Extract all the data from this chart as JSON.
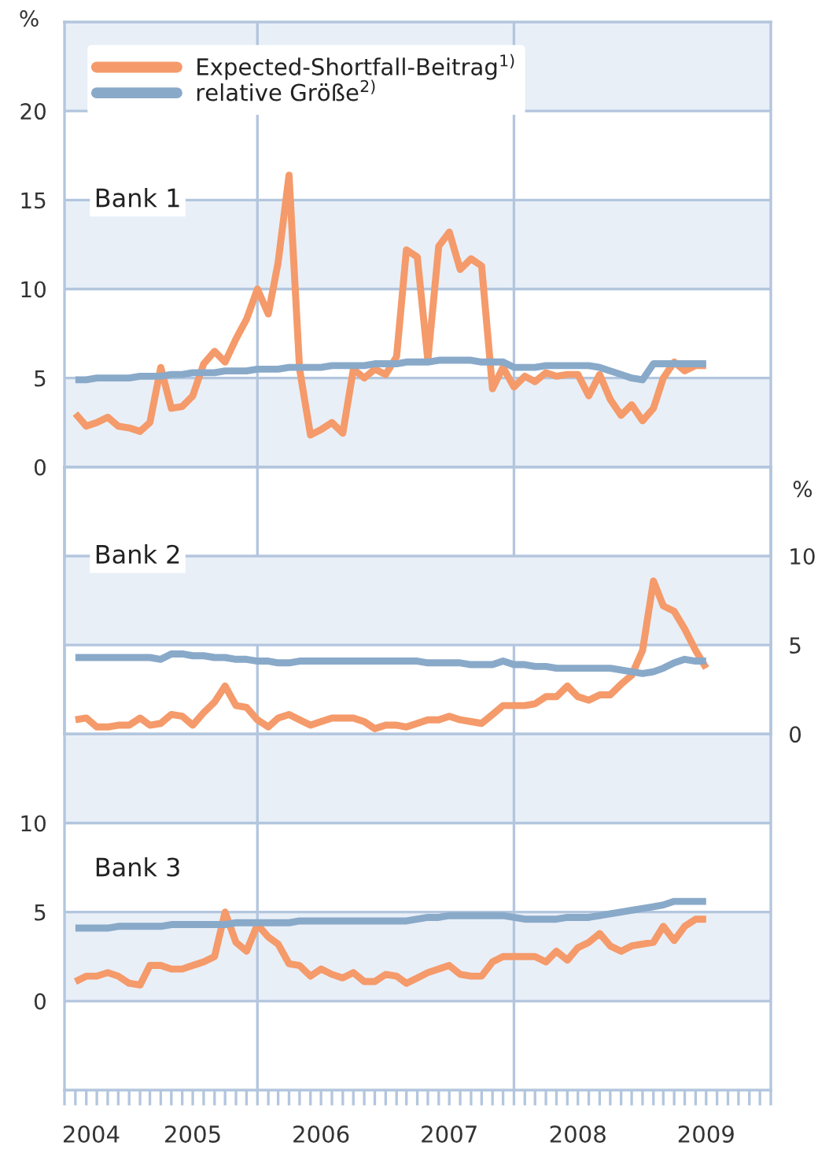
{
  "chart_data": [
    {
      "type": "line",
      "title": "Bank 1",
      "ylabel": "%",
      "x": [
        "2004-08",
        "2004-09",
        "2004-10",
        "2004-11",
        "2004-12",
        "2005-01",
        "2005-02",
        "2005-03",
        "2005-04",
        "2005-05",
        "2005-06",
        "2005-07",
        "2005-08",
        "2005-09",
        "2005-10",
        "2005-11",
        "2005-12",
        "2006-01",
        "2006-02",
        "2006-03",
        "2006-04",
        "2006-05",
        "2006-06",
        "2006-07",
        "2006-08",
        "2006-09",
        "2006-10",
        "2006-11",
        "2006-12",
        "2007-01",
        "2007-02",
        "2007-03",
        "2007-04",
        "2007-05",
        "2007-06",
        "2007-07",
        "2007-08",
        "2007-09",
        "2007-10",
        "2007-11",
        "2007-12",
        "2008-01",
        "2008-02",
        "2008-03",
        "2008-04",
        "2008-05",
        "2008-06",
        "2008-07",
        "2008-08",
        "2008-09",
        "2008-10",
        "2008-11",
        "2008-12",
        "2009-01",
        "2009-02",
        "2009-03",
        "2009-04",
        "2009-05",
        "2009-06",
        "2009-07"
      ],
      "series": [
        {
          "name": "Expected-Shortfall-Beitrag$^{1)}$",
          "color": "#f59a6a",
          "values": [
            3.0,
            2.3,
            2.5,
            2.8,
            2.3,
            2.2,
            2.0,
            2.5,
            5.6,
            3.3,
            3.4,
            4.0,
            5.8,
            6.5,
            5.9,
            7.2,
            8.3,
            10.0,
            8.6,
            11.5,
            16.4,
            5.5,
            1.8,
            2.1,
            2.5,
            1.9,
            5.5,
            5.0,
            5.5,
            5.2,
            6.2,
            12.2,
            11.8,
            6.0,
            12.4,
            13.2,
            11.1,
            11.7,
            11.3,
            4.4,
            5.6,
            4.5,
            5.1,
            4.8,
            5.3,
            5.1,
            5.2,
            5.2,
            4.0,
            5.2,
            3.8,
            2.9,
            3.5,
            2.6,
            3.3,
            5.0,
            5.9,
            5.4,
            5.7,
            5.7
          ]
        },
        {
          "name": "relative Größe$^{2)}$",
          "color": "#89a9c9",
          "values": [
            4.9,
            4.9,
            5.0,
            5.0,
            5.0,
            5.0,
            5.1,
            5.1,
            5.1,
            5.2,
            5.2,
            5.3,
            5.3,
            5.3,
            5.4,
            5.4,
            5.4,
            5.5,
            5.5,
            5.5,
            5.6,
            5.6,
            5.6,
            5.6,
            5.7,
            5.7,
            5.7,
            5.7,
            5.8,
            5.8,
            5.8,
            5.9,
            5.9,
            5.9,
            6.0,
            6.0,
            6.0,
            6.0,
            5.9,
            5.9,
            5.9,
            5.6,
            5.6,
            5.6,
            5.7,
            5.7,
            5.7,
            5.7,
            5.7,
            5.6,
            5.4,
            5.2,
            5.0,
            4.9,
            5.8,
            5.8,
            5.8,
            5.8,
            5.8,
            5.8
          ]
        }
      ],
      "xlim": [
        "2004-07",
        "2010-01"
      ],
      "ylim": [
        0,
        25
      ],
      "yticks": [
        0,
        5,
        10,
        15,
        20
      ],
      "tick_labels": "y",
      "grid": "y",
      "legend": "top left",
      "ref_lines": [
        {
          "axis": "x",
          "value": "2006-01",
          "color": "#b3c6de"
        },
        {
          "axis": "x",
          "value": "2008-01",
          "color": "#b3c6de"
        }
      ],
      "bands": [
        {
          "axis": "y",
          "from": 20,
          "to": 25,
          "color": "#e9eff7"
        },
        {
          "axis": "y",
          "from": 10,
          "to": 15,
          "color": "#e9eff7"
        },
        {
          "axis": "y",
          "from": 0,
          "to": 5,
          "color": "#e9eff7"
        }
      ]
    },
    {
      "type": "line",
      "title": "Bank 2",
      "y2label": "%",
      "x": [
        "2004-08",
        "2004-09",
        "2004-10",
        "2004-11",
        "2004-12",
        "2005-01",
        "2005-02",
        "2005-03",
        "2005-04",
        "2005-05",
        "2005-06",
        "2005-07",
        "2005-08",
        "2005-09",
        "2005-10",
        "2005-11",
        "2005-12",
        "2006-01",
        "2006-02",
        "2006-03",
        "2006-04",
        "2006-05",
        "2006-06",
        "2006-07",
        "2006-08",
        "2006-09",
        "2006-10",
        "2006-11",
        "2006-12",
        "2007-01",
        "2007-02",
        "2007-03",
        "2007-04",
        "2007-05",
        "2007-06",
        "2007-07",
        "2007-08",
        "2007-09",
        "2007-10",
        "2007-11",
        "2007-12",
        "2008-01",
        "2008-02",
        "2008-03",
        "2008-04",
        "2008-05",
        "2008-06",
        "2008-07",
        "2008-08",
        "2008-09",
        "2008-10",
        "2008-11",
        "2008-12",
        "2009-01",
        "2009-02",
        "2009-03",
        "2009-04",
        "2009-05",
        "2009-06",
        "2009-07"
      ],
      "series": [
        {
          "color": "#f59a6a",
          "axis": "y2",
          "values": [
            0.8,
            0.9,
            0.4,
            0.4,
            0.5,
            0.5,
            0.9,
            0.5,
            0.6,
            1.1,
            1.0,
            0.5,
            1.2,
            1.8,
            2.7,
            1.6,
            1.5,
            0.8,
            0.4,
            0.9,
            1.1,
            0.8,
            0.5,
            0.7,
            0.9,
            0.9,
            0.9,
            0.7,
            0.3,
            0.5,
            0.5,
            0.4,
            0.6,
            0.8,
            0.8,
            1.0,
            0.8,
            0.7,
            0.6,
            1.1,
            1.6,
            1.6,
            1.6,
            1.7,
            2.1,
            2.1,
            2.7,
            2.1,
            1.9,
            2.2,
            2.2,
            2.8,
            3.3,
            4.7,
            8.6,
            7.2,
            6.9,
            5.9,
            4.7,
            3.7
          ]
        },
        {
          "color": "#89a9c9",
          "axis": "y2",
          "values": [
            4.3,
            4.3,
            4.3,
            4.3,
            4.3,
            4.3,
            4.3,
            4.3,
            4.2,
            4.5,
            4.5,
            4.4,
            4.4,
            4.3,
            4.3,
            4.2,
            4.2,
            4.1,
            4.1,
            4.0,
            4.0,
            4.1,
            4.1,
            4.1,
            4.1,
            4.1,
            4.1,
            4.1,
            4.1,
            4.1,
            4.1,
            4.1,
            4.1,
            4.0,
            4.0,
            4.0,
            4.0,
            3.9,
            3.9,
            3.9,
            4.1,
            3.9,
            3.9,
            3.8,
            3.8,
            3.7,
            3.7,
            3.7,
            3.7,
            3.7,
            3.7,
            3.6,
            3.5,
            3.4,
            3.5,
            3.7,
            4.0,
            4.2,
            4.1,
            4.1
          ]
        }
      ],
      "xlim": [
        "2004-07",
        "2010-01"
      ],
      "y2lim": [
        0,
        15
      ],
      "y2ticks": [
        0,
        5,
        10
      ],
      "tick_labels": "y",
      "grid": "y",
      "ref_lines": [
        {
          "axis": "x",
          "value": "2006-01",
          "color": "#b3c6de"
        },
        {
          "axis": "x",
          "value": "2008-01",
          "color": "#b3c6de"
        }
      ],
      "bands": [
        {
          "axis": "y2",
          "from": 5,
          "to": 10,
          "color": "#e9eff7"
        }
      ]
    },
    {
      "type": "line",
      "title": "Bank 3",
      "x": [
        "2004-08",
        "2004-09",
        "2004-10",
        "2004-11",
        "2004-12",
        "2005-01",
        "2005-02",
        "2005-03",
        "2005-04",
        "2005-05",
        "2005-06",
        "2005-07",
        "2005-08",
        "2005-09",
        "2005-10",
        "2005-11",
        "2005-12",
        "2006-01",
        "2006-02",
        "2006-03",
        "2006-04",
        "2006-05",
        "2006-06",
        "2006-07",
        "2006-08",
        "2006-09",
        "2006-10",
        "2006-11",
        "2006-12",
        "2007-01",
        "2007-02",
        "2007-03",
        "2007-04",
        "2007-05",
        "2007-06",
        "2007-07",
        "2007-08",
        "2007-09",
        "2007-10",
        "2007-11",
        "2007-12",
        "2008-01",
        "2008-02",
        "2008-03",
        "2008-04",
        "2008-05",
        "2008-06",
        "2008-07",
        "2008-08",
        "2008-09",
        "2008-10",
        "2008-11",
        "2008-12",
        "2009-01",
        "2009-02",
        "2009-03",
        "2009-04",
        "2009-05",
        "2009-06",
        "2009-07"
      ],
      "series": [
        {
          "color": "#f59a6a",
          "values": [
            1.1,
            1.4,
            1.4,
            1.6,
            1.4,
            1.0,
            0.9,
            2.0,
            2.0,
            1.8,
            1.8,
            2.0,
            2.2,
            2.5,
            5.0,
            3.3,
            2.8,
            4.3,
            3.6,
            3.2,
            2.1,
            2.0,
            1.4,
            1.8,
            1.5,
            1.3,
            1.6,
            1.1,
            1.1,
            1.5,
            1.4,
            1.0,
            1.3,
            1.6,
            1.8,
            2.0,
            1.5,
            1.4,
            1.4,
            2.2,
            2.5,
            2.5,
            2.5,
            2.5,
            2.2,
            2.8,
            2.3,
            3.0,
            3.3,
            3.8,
            3.1,
            2.8,
            3.1,
            3.2,
            3.3,
            4.2,
            3.4,
            4.2,
            4.6,
            4.6
          ]
        },
        {
          "color": "#89a9c9",
          "values": [
            4.1,
            4.1,
            4.1,
            4.1,
            4.2,
            4.2,
            4.2,
            4.2,
            4.2,
            4.3,
            4.3,
            4.3,
            4.3,
            4.3,
            4.3,
            4.4,
            4.4,
            4.4,
            4.4,
            4.4,
            4.4,
            4.5,
            4.5,
            4.5,
            4.5,
            4.5,
            4.5,
            4.5,
            4.5,
            4.5,
            4.5,
            4.5,
            4.6,
            4.7,
            4.7,
            4.8,
            4.8,
            4.8,
            4.8,
            4.8,
            4.8,
            4.7,
            4.6,
            4.6,
            4.6,
            4.6,
            4.7,
            4.7,
            4.7,
            4.8,
            4.9,
            5.0,
            5.1,
            5.2,
            5.3,
            5.4,
            5.6,
            5.6,
            5.6,
            5.6
          ]
        }
      ],
      "xlim": [
        "2004-07",
        "2010-01"
      ],
      "ylim": [
        -5,
        15
      ],
      "yticks": [
        0,
        5,
        10
      ],
      "grid": "y",
      "xticks": [
        {
          "value": "2004-09-15",
          "label": "2004"
        },
        {
          "value": "2005-07",
          "label": "2005"
        },
        {
          "value": "2006-07",
          "label": "2006"
        },
        {
          "value": "2007-07",
          "label": "2007"
        },
        {
          "value": "2008-07",
          "label": "2008"
        },
        {
          "value": "2009-07",
          "label": "2009"
        },
        {
          "value": "2005-01",
          "label": null
        },
        {
          "value": "2006-01",
          "label": null
        },
        {
          "value": "2007-01",
          "label": null
        },
        {
          "value": "2008-01",
          "label": null
        },
        {
          "value": "2009-01",
          "label": null
        }
      ],
      "ref_lines": [
        {
          "axis": "x",
          "value": "2006-01",
          "color": "#b3c6de"
        },
        {
          "axis": "x",
          "value": "2008-01",
          "color": "#b3c6de"
        }
      ],
      "bands": [
        {
          "axis": "y",
          "from": 10,
          "to": 15,
          "color": "#e9eff7"
        },
        {
          "axis": "y",
          "from": 0,
          "to": 5,
          "color": "#e9eff7"
        }
      ]
    }
  ]
}
